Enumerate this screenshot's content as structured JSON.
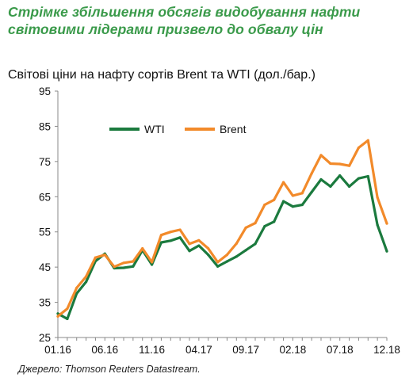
{
  "headline": {
    "line1": "Стрімке збільшення обсягів видобування нафти",
    "line2": "світовими лідерами призвело до обвалу цін"
  },
  "source": "Джерело: Thomson Reuters Datastream.",
  "chart_data": {
    "type": "line",
    "title": "Світові ціни на нафту сортів Brent та WTI (дол./бар.)",
    "xlabel": "",
    "ylabel": "",
    "x_tick_labels": [
      "01.16",
      "06.16",
      "11.16",
      "04.17",
      "09.17",
      "02.18",
      "07.18",
      "12.18"
    ],
    "x": [
      "01.16",
      "02.16",
      "03.16",
      "04.16",
      "05.16",
      "06.16",
      "07.16",
      "08.16",
      "09.16",
      "10.16",
      "11.16",
      "12.16",
      "01.17",
      "02.17",
      "03.17",
      "04.17",
      "05.17",
      "06.17",
      "07.17",
      "08.17",
      "09.17",
      "10.17",
      "11.17",
      "12.17",
      "01.18",
      "02.18",
      "03.18",
      "04.18",
      "05.18",
      "06.18",
      "07.18",
      "08.18",
      "09.18",
      "10.18",
      "11.18",
      "12.18"
    ],
    "y_ticks": [
      25,
      35,
      45,
      55,
      65,
      75,
      85,
      95
    ],
    "ylim": [
      25,
      95
    ],
    "grid": false,
    "legend_position": "top-left",
    "colors": {
      "WTI": "#1b7a3e",
      "Brent": "#f28a2a"
    },
    "series": [
      {
        "name": "WTI",
        "values": [
          31.8,
          30.3,
          37.5,
          40.8,
          46.7,
          48.8,
          44.7,
          44.8,
          45.2,
          49.8,
          45.7,
          52.0,
          52.5,
          53.4,
          49.6,
          51.1,
          48.5,
          45.2,
          46.6,
          48.0,
          49.8,
          51.6,
          56.6,
          57.9,
          63.7,
          62.2,
          62.7,
          66.3,
          69.9,
          67.9,
          71.0,
          67.9,
          70.2,
          70.8,
          57.0,
          49.5
        ]
      },
      {
        "name": "Brent",
        "values": [
          31.0,
          33.2,
          39.1,
          42.3,
          47.7,
          48.5,
          45.1,
          46.2,
          46.6,
          50.3,
          46.4,
          54.1,
          55.0,
          55.6,
          51.6,
          52.6,
          50.3,
          46.4,
          48.5,
          51.7,
          56.2,
          57.5,
          62.7,
          64.1,
          69.1,
          65.3,
          66.0,
          71.6,
          76.8,
          74.4,
          74.3,
          73.8,
          78.9,
          81.0,
          64.8,
          57.4
        ]
      }
    ]
  }
}
